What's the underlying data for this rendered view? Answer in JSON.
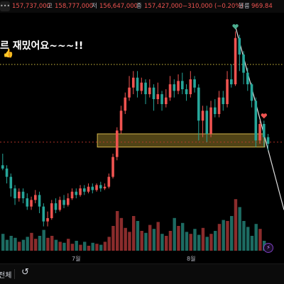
{
  "header": {
    "menu_icon": "chart-menu-icon",
    "open_value": "157,737,000",
    "high_label": "고",
    "high_value": "158,777,000",
    "low_label": "저",
    "low_value": "156,647,000",
    "close_label": "종",
    "close_value": "157,427,000",
    "change": "−310,000 (−0.20%)",
    "volume_label": "볼륨",
    "volume_value": "969.84"
  },
  "annotation": {
    "text": "르 재밌어요~~~!!",
    "thumb_icon": "thumbs-up-icon"
  },
  "footer": {
    "left_label": "전체",
    "replay_icon": "replay-icon",
    "lightning_icon": "lightning-icon"
  },
  "colors": {
    "up": "#ef5350",
    "down": "#26a69a",
    "zone_fill": "#6b5a1e",
    "zone_border": "#d4b64a",
    "trendline": "#e0e0e0",
    "marker": "#4caf90"
  },
  "chart_data": {
    "type": "candlestick",
    "x_tick_labels": [
      "7월",
      "8월"
    ],
    "notes": "y-axis values are not printed; prices are in relative units read from the chart",
    "horizontal_levels": {
      "dotted_resistance": 108,
      "dashed_current": 61
    },
    "support_zone": {
      "low": 58,
      "high": 66
    },
    "candles": [
      {
        "o": 47,
        "c": 45,
        "h": 54,
        "l": 44
      },
      {
        "o": 45,
        "c": 40,
        "h": 47,
        "l": 36
      },
      {
        "o": 40,
        "c": 33,
        "h": 42,
        "l": 28
      },
      {
        "o": 33,
        "c": 27,
        "h": 35,
        "l": 23
      },
      {
        "o": 27,
        "c": 31,
        "h": 33,
        "l": 25
      },
      {
        "o": 31,
        "c": 27,
        "h": 33,
        "l": 24
      },
      {
        "o": 27,
        "c": 22,
        "h": 30,
        "l": 20
      },
      {
        "o": 22,
        "c": 26,
        "h": 28,
        "l": 20
      },
      {
        "o": 26,
        "c": 29,
        "h": 32,
        "l": 24
      },
      {
        "o": 29,
        "c": 22,
        "h": 31,
        "l": 18
      },
      {
        "o": 22,
        "c": 13,
        "h": 24,
        "l": 10
      },
      {
        "o": 13,
        "c": 15,
        "h": 19,
        "l": 10
      },
      {
        "o": 15,
        "c": 24,
        "h": 26,
        "l": 14
      },
      {
        "o": 24,
        "c": 20,
        "h": 27,
        "l": 18
      },
      {
        "o": 20,
        "c": 26,
        "h": 28,
        "l": 19
      },
      {
        "o": 26,
        "c": 23,
        "h": 29,
        "l": 21
      },
      {
        "o": 23,
        "c": 27,
        "h": 30,
        "l": 22
      },
      {
        "o": 27,
        "c": 31,
        "h": 33,
        "l": 26
      },
      {
        "o": 31,
        "c": 29,
        "h": 33,
        "l": 27
      },
      {
        "o": 29,
        "c": 33,
        "h": 35,
        "l": 28
      },
      {
        "o": 33,
        "c": 31,
        "h": 35,
        "l": 29
      },
      {
        "o": 31,
        "c": 34,
        "h": 36,
        "l": 30
      },
      {
        "o": 34,
        "c": 32,
        "h": 36,
        "l": 30
      },
      {
        "o": 32,
        "c": 35,
        "h": 36,
        "l": 31
      },
      {
        "o": 35,
        "c": 33,
        "h": 37,
        "l": 31
      },
      {
        "o": 33,
        "c": 34,
        "h": 36,
        "l": 32
      },
      {
        "o": 34,
        "c": 40,
        "h": 42,
        "l": 33
      },
      {
        "o": 40,
        "c": 52,
        "h": 54,
        "l": 39
      },
      {
        "o": 52,
        "c": 68,
        "h": 70,
        "l": 50
      },
      {
        "o": 68,
        "c": 80,
        "h": 83,
        "l": 66
      },
      {
        "o": 80,
        "c": 88,
        "h": 91,
        "l": 78
      },
      {
        "o": 88,
        "c": 94,
        "h": 101,
        "l": 86
      },
      {
        "o": 94,
        "c": 100,
        "h": 104,
        "l": 90
      },
      {
        "o": 100,
        "c": 92,
        "h": 104,
        "l": 88
      },
      {
        "o": 92,
        "c": 97,
        "h": 100,
        "l": 90
      },
      {
        "o": 97,
        "c": 90,
        "h": 99,
        "l": 84
      },
      {
        "o": 90,
        "c": 94,
        "h": 99,
        "l": 88
      },
      {
        "o": 94,
        "c": 87,
        "h": 96,
        "l": 80
      },
      {
        "o": 87,
        "c": 90,
        "h": 97,
        "l": 84
      },
      {
        "o": 90,
        "c": 84,
        "h": 92,
        "l": 80
      },
      {
        "o": 84,
        "c": 88,
        "h": 93,
        "l": 82
      },
      {
        "o": 88,
        "c": 96,
        "h": 101,
        "l": 86
      },
      {
        "o": 96,
        "c": 92,
        "h": 99,
        "l": 88
      },
      {
        "o": 92,
        "c": 98,
        "h": 102,
        "l": 90
      },
      {
        "o": 98,
        "c": 93,
        "h": 103,
        "l": 90
      },
      {
        "o": 93,
        "c": 90,
        "h": 96,
        "l": 86
      },
      {
        "o": 90,
        "c": 99,
        "h": 104,
        "l": 88
      },
      {
        "o": 99,
        "c": 94,
        "h": 101,
        "l": 91
      },
      {
        "o": 94,
        "c": 74,
        "h": 96,
        "l": 62
      },
      {
        "o": 74,
        "c": 80,
        "h": 83,
        "l": 64
      },
      {
        "o": 80,
        "c": 66,
        "h": 83,
        "l": 61
      },
      {
        "o": 66,
        "c": 82,
        "h": 86,
        "l": 64
      },
      {
        "o": 82,
        "c": 78,
        "h": 87,
        "l": 76
      },
      {
        "o": 78,
        "c": 88,
        "h": 92,
        "l": 76
      },
      {
        "o": 88,
        "c": 84,
        "h": 92,
        "l": 80
      },
      {
        "o": 84,
        "c": 99,
        "h": 104,
        "l": 82
      },
      {
        "o": 99,
        "c": 96,
        "h": 108,
        "l": 94
      },
      {
        "o": 96,
        "c": 124,
        "h": 128,
        "l": 95
      },
      {
        "o": 124,
        "c": 114,
        "h": 126,
        "l": 104
      },
      {
        "o": 114,
        "c": 103,
        "h": 116,
        "l": 96
      },
      {
        "o": 103,
        "c": 96,
        "h": 106,
        "l": 92
      },
      {
        "o": 96,
        "c": 86,
        "h": 97,
        "l": 82
      },
      {
        "o": 86,
        "c": 62,
        "h": 88,
        "l": 58
      },
      {
        "o": 62,
        "c": 72,
        "h": 74,
        "l": 60
      },
      {
        "o": 72,
        "c": 64,
        "h": 74,
        "l": 58
      },
      {
        "o": 64,
        "c": 60,
        "h": 66,
        "l": 56
      }
    ],
    "volume": [
      34,
      22,
      30,
      26,
      18,
      22,
      28,
      36,
      24,
      30,
      42,
      26,
      30,
      22,
      18,
      16,
      24,
      14,
      20,
      12,
      18,
      10,
      16,
      14,
      12,
      18,
      28,
      50,
      80,
      66,
      46,
      38,
      70,
      60,
      40,
      36,
      52,
      44,
      58,
      34,
      30,
      40,
      66,
      50,
      56,
      38,
      34,
      44,
      32,
      46,
      28,
      34,
      40,
      54,
      62,
      60,
      70,
      104,
      88,
      60,
      48,
      30,
      54,
      44,
      20,
      14
    ],
    "markers": [
      {
        "type": "heart",
        "candle": 57,
        "color": "#4caf90"
      },
      {
        "type": "heart",
        "candle": 64,
        "color": "#ef5350"
      }
    ]
  }
}
